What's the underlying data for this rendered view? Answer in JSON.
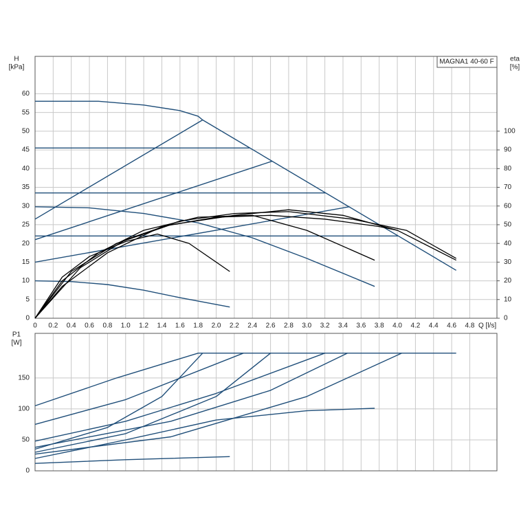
{
  "chart_data": [
    {
      "type": "line",
      "title": "MAGNA1 40-60 F",
      "ylabel": "H",
      "yunit": "[kPa]",
      "y2label": "eta",
      "y2unit": "[%]",
      "xlabel": "Q [l/s]",
      "xlim": [
        0,
        5.1
      ],
      "ylim": [
        0,
        70
      ],
      "y2lim": [
        0,
        140
      ],
      "grid": true,
      "xticks": [
        0,
        0.2,
        0.4,
        0.6,
        0.8,
        {
          "value": 1,
          "label": "1.0"
        },
        1.2,
        1.4,
        1.6,
        1.8,
        {
          "value": 2,
          "label": "2.0"
        },
        2.2,
        2.4,
        2.6,
        2.8,
        {
          "value": 3,
          "label": "3.0"
        },
        3.2,
        3.4,
        3.6,
        3.8,
        {
          "value": 4,
          "label": "4.0"
        },
        4.2,
        4.4,
        4.6,
        4.8
      ],
      "yticks": [
        0,
        5,
        10,
        15,
        20,
        25,
        30,
        35,
        40,
        45,
        50,
        55,
        60
      ],
      "y2ticks": [
        0,
        10,
        20,
        30,
        40,
        50,
        60,
        70,
        80,
        90,
        100
      ],
      "series": [
        {
          "color": "#1f4e79",
          "x": [
            0,
            0.7,
            1.2,
            1.6,
            1.8,
            1.85,
            4.65
          ],
          "values": [
            58,
            58,
            57,
            55.5,
            54,
            53,
            12.8
          ]
        },
        {
          "color": "#1f4e79",
          "x": [
            0,
            2.37
          ],
          "values": [
            45.5,
            45.5
          ]
        },
        {
          "color": "#1f4e79",
          "x": [
            0,
            3.21
          ],
          "values": [
            33.5,
            33.5
          ]
        },
        {
          "color": "#1f4e79",
          "x": [
            0,
            4.01
          ],
          "values": [
            22,
            22
          ]
        },
        {
          "color": "#1f4e79",
          "x": [
            0,
            1.85
          ],
          "values": [
            26.5,
            53
          ]
        },
        {
          "color": "#1f4e79",
          "x": [
            0,
            2.62
          ],
          "values": [
            21,
            42
          ]
        },
        {
          "color": "#1f4e79",
          "x": [
            0,
            3.47
          ],
          "values": [
            15,
            29.8
          ]
        },
        {
          "color": "#1f4e79",
          "x": [
            0,
            0.6,
            1.2,
            1.8,
            2.4,
            3.0,
            3.75
          ],
          "values": [
            29.8,
            29.5,
            28,
            25.5,
            21.5,
            16,
            8.5
          ]
        },
        {
          "color": "#1f4e79",
          "x": [
            0,
            0.4,
            0.8,
            1.2,
            1.6,
            2.15
          ],
          "values": [
            10,
            9.8,
            9,
            7.5,
            5.5,
            3
          ]
        },
        {
          "color": "#000000",
          "axis": "y2",
          "x": [
            0,
            0.3,
            0.6,
            1.0,
            1.35,
            1.7,
            2.15
          ],
          "values": [
            0,
            22,
            33,
            41,
            45,
            40,
            25
          ]
        },
        {
          "color": "#000000",
          "axis": "y2",
          "x": [
            0,
            0.3,
            0.7,
            1.2,
            1.8,
            2.4,
            3.0,
            3.75
          ],
          "values": [
            0,
            20,
            35,
            47,
            54,
            55,
            47,
            31
          ]
        },
        {
          "color": "#000000",
          "axis": "y2",
          "x": [
            0,
            0.4,
            0.9,
            1.5,
            2.2,
            2.8,
            3.4,
            4.0,
            4.65
          ],
          "values": [
            0,
            25,
            40,
            50,
            55,
            58,
            55,
            47,
            31
          ]
        },
        {
          "color": "#000000",
          "axis": "y2",
          "x": [
            0,
            0.5,
            1.0,
            1.6,
            2.2,
            2.8,
            3.5,
            4.1,
            4.65
          ],
          "values": [
            0,
            27,
            42,
            52,
            56,
            57,
            53,
            47,
            32
          ]
        },
        {
          "color": "#000000",
          "axis": "y2",
          "x": [
            0,
            0.3,
            0.8,
            1.4,
            2.0,
            2.6,
            3.2,
            3.8,
            4.0
          ],
          "values": [
            0,
            17,
            35,
            49,
            54,
            55,
            53,
            49,
            47
          ]
        }
      ]
    },
    {
      "type": "line",
      "ylabel": "P1",
      "yunit": "[W]",
      "xlim": [
        0,
        5.1
      ],
      "ylim": [
        0,
        222
      ],
      "grid": true,
      "yticks": [
        0,
        50,
        100,
        150
      ],
      "series": [
        {
          "color": "#1f4e79",
          "x": [
            0,
            0.9,
            1.8,
            4.65
          ],
          "values": [
            105,
            150,
            190,
            190
          ]
        },
        {
          "color": "#1f4e79",
          "x": [
            0,
            1.0,
            2.3
          ],
          "values": [
            75,
            115,
            190
          ]
        },
        {
          "color": "#1f4e79",
          "x": [
            0,
            0.8,
            1.4,
            1.85
          ],
          "values": [
            35,
            70,
            120,
            190
          ]
        },
        {
          "color": "#1f4e79",
          "x": [
            0,
            1.0,
            2.0,
            3.2
          ],
          "values": [
            48,
            80,
            125,
            190
          ]
        },
        {
          "color": "#1f4e79",
          "x": [
            0,
            1.0,
            2.0,
            2.6
          ],
          "values": [
            30,
            60,
            120,
            190
          ]
        },
        {
          "color": "#1f4e79",
          "x": [
            0,
            1.5,
            2.6,
            3.45
          ],
          "values": [
            38,
            80,
            130,
            190
          ]
        },
        {
          "color": "#1f4e79",
          "x": [
            0,
            1.5,
            3.0,
            4.05
          ],
          "values": [
            27,
            55,
            120,
            190
          ]
        },
        {
          "color": "#1f4e79",
          "x": [
            0,
            1.0,
            2.0,
            3.0,
            3.75
          ],
          "values": [
            20,
            50,
            82,
            97,
            101
          ]
        },
        {
          "color": "#1f4e79",
          "x": [
            0,
            1.0,
            2.15
          ],
          "values": [
            12,
            18,
            23
          ]
        }
      ]
    }
  ]
}
